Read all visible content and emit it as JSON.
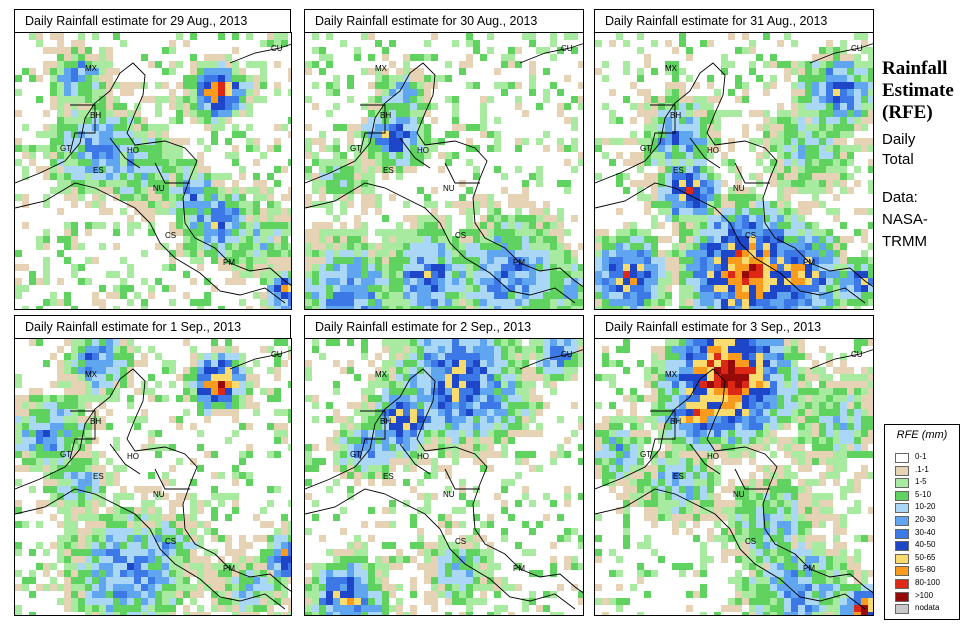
{
  "panels": [
    {
      "title": "Daily Rainfall estimate for  29 Aug., 2013"
    },
    {
      "title": "Daily Rainfall estimate for  30 Aug., 2013"
    },
    {
      "title": "Daily Rainfall estimate for  31 Aug., 2013"
    },
    {
      "title": "Daily Rainfall estimate for  1 Sep., 2013"
    },
    {
      "title": "Daily Rainfall estimate for  2 Sep., 2013"
    },
    {
      "title": "Daily Rainfall estimate for  3 Sep., 2013"
    }
  ],
  "map_labels": [
    "MX",
    "BH",
    "GT",
    "HO",
    "ES",
    "NU",
    "CS",
    "PM",
    "CU"
  ],
  "side": {
    "title_line1": "Rainfall",
    "title_line2": "Estimate",
    "title_line3": "(RFE)",
    "daily": "Daily",
    "total": "Total",
    "data_label": "Data:",
    "source1": "NASA-",
    "source2": "TRMM"
  },
  "legend": {
    "title": "RFE (mm)",
    "items": [
      {
        "label": "0-1",
        "color": "#ffffff"
      },
      {
        "label": ".1-1",
        "color": "#e6d2b4"
      },
      {
        "label": "1-5",
        "color": "#a8eba0"
      },
      {
        "label": "5-10",
        "color": "#5fd25f"
      },
      {
        "label": "10-20",
        "color": "#aad7f5"
      },
      {
        "label": "20-30",
        "color": "#5fa5f0"
      },
      {
        "label": "30-40",
        "color": "#3c78e6"
      },
      {
        "label": "40-50",
        "color": "#1e46c8"
      },
      {
        "label": "50-65",
        "color": "#fadc6e"
      },
      {
        "label": "65-80",
        "color": "#fa9b1e"
      },
      {
        "label": "80-100",
        "color": "#dc2814"
      },
      {
        "label": ">100",
        "color": "#960a0a"
      },
      {
        "label": "nodata",
        "color": "#c8c8c8"
      }
    ]
  },
  "colors": {
    "land_border": "#000000",
    "frame": "#000000"
  }
}
